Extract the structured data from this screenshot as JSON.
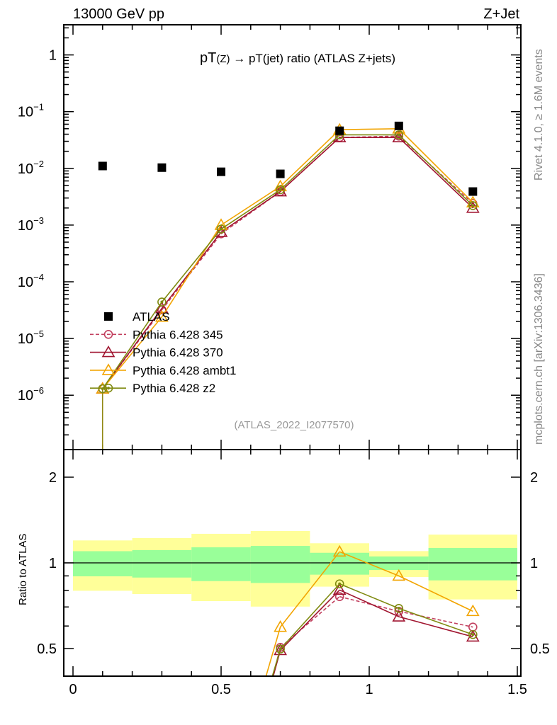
{
  "header": {
    "left": "13000 GeV pp",
    "right": "Z+Jet"
  },
  "side_text": {
    "rivet": "Rivet 4.1.0, ≥ 1.6M events",
    "mcplots": "mcplots.cern.ch [arXiv:1306.3436]"
  },
  "chart_data": {
    "type": "line",
    "title": {
      "main1": "pT",
      "sub": "(Z)",
      "main2": " → pT(jet) ratio (ATLAS Z+jets)"
    },
    "analysis_id": "(ATLAS_2022_I2077570)",
    "xlim": [
      0,
      1.5
    ],
    "x_ticks": [
      {
        "v": 0,
        "label": "0"
      },
      {
        "v": 0.5,
        "label": "0.5"
      },
      {
        "v": 1,
        "label": "1"
      },
      {
        "v": 1.5,
        "label": "1.5"
      }
    ],
    "main": {
      "yscale": "log",
      "ylim": [
        1.1e-07,
        3.4
      ],
      "y_ticks": [
        {
          "exp": 0,
          "label": "1"
        },
        {
          "exp": -1,
          "label": "10",
          "sup": "−1"
        },
        {
          "exp": -2,
          "label": "10",
          "sup": "−2"
        },
        {
          "exp": -3,
          "label": "10",
          "sup": "−3"
        },
        {
          "exp": -4,
          "label": "10",
          "sup": "−4"
        },
        {
          "exp": -5,
          "label": "10",
          "sup": "−5"
        },
        {
          "exp": -6,
          "label": "10",
          "sup": "−6"
        }
      ]
    },
    "x": [
      0.1,
      0.3,
      0.5,
      0.7,
      0.9,
      1.1,
      1.35
    ],
    "bin_edges": [
      0,
      0.2,
      0.4,
      0.6,
      0.8,
      1.0,
      1.2,
      1.5
    ],
    "data": {
      "name": "ATLAS",
      "color": "#000000",
      "values": [
        0.011,
        0.0103,
        0.0087,
        0.008,
        0.046,
        0.056,
        0.0039
      ]
    },
    "series": [
      {
        "name": "Pythia 6.428 345",
        "color": "#c2405f",
        "marker": "circle",
        "dashed": true,
        "values": [
          1.3e-06,
          3.2e-05,
          0.0007,
          0.0039,
          0.035,
          0.037,
          0.0024
        ],
        "ratio": [
          0.00012,
          0.0031,
          0.08,
          0.505,
          0.761,
          0.676,
          0.595
        ]
      },
      {
        "name": "Pythia 6.428 370",
        "color": "#a01530",
        "marker": "triangle",
        "dashed": false,
        "values": [
          1.3e-06,
          3.4e-05,
          0.00075,
          0.0039,
          0.035,
          0.035,
          0.002
        ],
        "ratio": [
          0.00012,
          0.0033,
          0.086,
          0.493,
          0.803,
          0.647,
          0.55
        ]
      },
      {
        "name": "Pythia 6.428 ambt1",
        "color": "#f2a400",
        "marker": "triangle",
        "dashed": false,
        "values": [
          1.3e-06,
          2.4e-05,
          0.001,
          0.0048,
          0.048,
          0.05,
          0.0025
        ],
        "ratio": [
          0.00012,
          0.0023,
          0.115,
          0.595,
          1.094,
          0.9,
          0.676
        ]
      },
      {
        "name": "Pythia 6.428 z2",
        "color": "#7f8a10",
        "marker": "circle-dot",
        "dashed": false,
        "values": [
          1.3e-06,
          4.4e-05,
          0.00085,
          0.0042,
          0.039,
          0.039,
          0.0022
        ],
        "ratio": [
          0.00012,
          0.0043,
          0.098,
          0.498,
          0.844,
          0.692,
          0.56
        ]
      }
    ],
    "ratio_panel": {
      "ylabel": "Ratio to ATLAS",
      "yscale": "log",
      "ylim": [
        0.4,
        2.5
      ],
      "y_ticks": [
        {
          "v": 0.5,
          "label": "0.5"
        },
        {
          "v": 1,
          "label": "1"
        },
        {
          "v": 2,
          "label": "2"
        }
      ],
      "band_colors": {
        "outer": "#ffff99",
        "inner": "#99ff99"
      },
      "outer_band": [
        [
          0.798,
          1.199
        ],
        [
          0.777,
          1.222
        ],
        [
          0.734,
          1.265
        ],
        [
          0.702,
          1.294
        ],
        [
          0.825,
          1.172
        ],
        [
          0.892,
          1.1
        ],
        [
          0.744,
          1.257
        ]
      ],
      "inner_band": [
        [
          0.897,
          1.099
        ],
        [
          0.888,
          1.109
        ],
        [
          0.863,
          1.134
        ],
        [
          0.85,
          1.147
        ],
        [
          0.909,
          1.085
        ],
        [
          0.944,
          1.053
        ],
        [
          0.868,
          1.128
        ]
      ]
    }
  }
}
